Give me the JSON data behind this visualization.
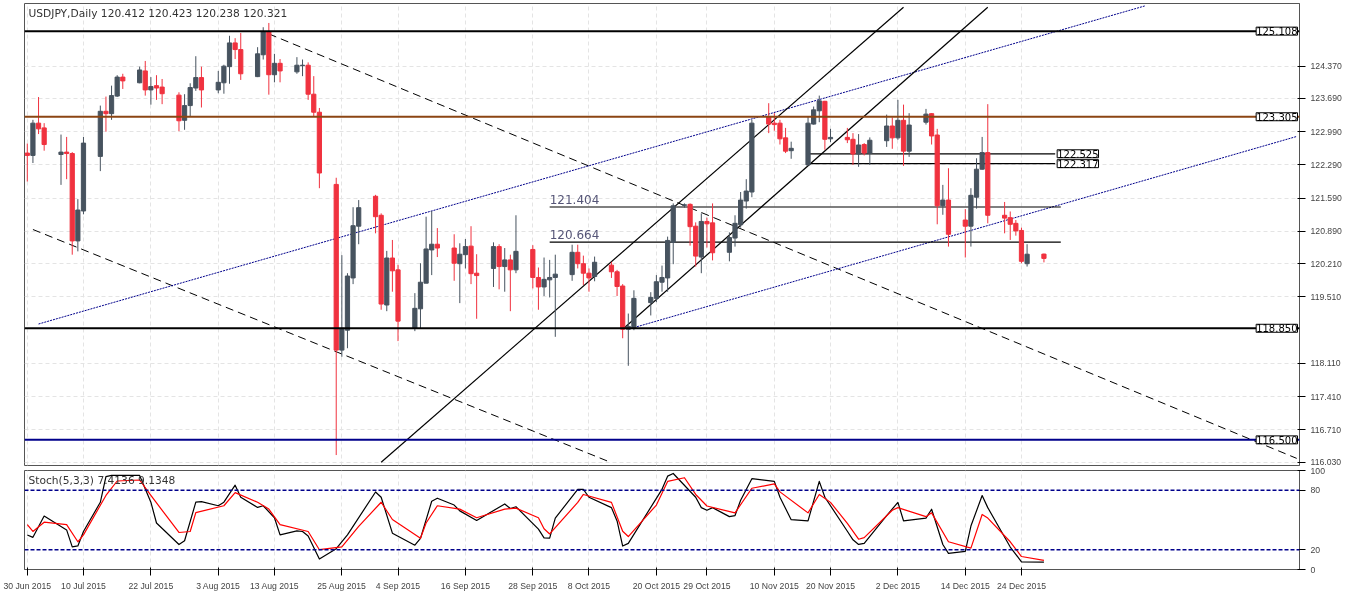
{
  "chart_data": [
    {
      "type": "candlestick",
      "title": "USDJPY,Daily 120.412 120.423 120.238 120.321",
      "x": [
        "2015-06-30",
        "2015-07-01",
        "2015-07-02",
        "2015-07-03",
        "2015-07-06",
        "2015-07-07",
        "2015-07-08",
        "2015-07-09",
        "2015-07-10",
        "2015-07-13",
        "2015-07-14",
        "2015-07-15",
        "2015-07-16",
        "2015-07-17",
        "2015-07-20",
        "2015-07-21",
        "2015-07-22",
        "2015-07-23",
        "2015-07-24",
        "2015-07-27",
        "2015-07-28",
        "2015-07-29",
        "2015-07-30",
        "2015-07-31",
        "2015-08-03",
        "2015-08-04",
        "2015-08-05",
        "2015-08-06",
        "2015-08-07",
        "2015-08-10",
        "2015-08-11",
        "2015-08-12",
        "2015-08-13",
        "2015-08-14",
        "2015-08-17",
        "2015-08-18",
        "2015-08-19",
        "2015-08-20",
        "2015-08-21",
        "2015-08-24",
        "2015-08-25",
        "2015-08-26",
        "2015-08-27",
        "2015-08-28",
        "2015-08-31",
        "2015-09-01",
        "2015-09-02",
        "2015-09-03",
        "2015-09-04",
        "2015-09-07",
        "2015-09-08",
        "2015-09-09",
        "2015-09-10",
        "2015-09-11",
        "2015-09-14",
        "2015-09-15",
        "2015-09-16",
        "2015-09-17",
        "2015-09-18",
        "2015-09-21",
        "2015-09-22",
        "2015-09-23",
        "2015-09-24",
        "2015-09-25",
        "2015-09-28",
        "2015-09-29",
        "2015-09-30",
        "2015-10-01",
        "2015-10-02",
        "2015-10-05",
        "2015-10-06",
        "2015-10-07",
        "2015-10-08",
        "2015-10-09",
        "2015-10-12",
        "2015-10-13",
        "2015-10-14",
        "2015-10-15",
        "2015-10-16",
        "2015-10-19",
        "2015-10-20",
        "2015-10-21",
        "2015-10-22",
        "2015-10-23",
        "2015-10-25",
        "2015-10-26",
        "2015-10-27",
        "2015-10-28",
        "2015-10-29",
        "2015-10-30",
        "2015-11-02",
        "2015-11-03",
        "2015-11-04",
        "2015-11-05",
        "2015-11-06",
        "2015-11-09",
        "2015-11-10",
        "2015-11-11",
        "2015-11-12",
        "2015-11-13",
        "2015-11-16",
        "2015-11-17",
        "2015-11-18",
        "2015-11-19",
        "2015-11-20",
        "2015-11-23",
        "2015-11-24",
        "2015-11-25",
        "2015-11-26",
        "2015-11-27",
        "2015-11-30",
        "2015-12-01",
        "2015-12-02",
        "2015-12-03",
        "2015-12-04",
        "2015-12-07",
        "2015-12-08",
        "2015-12-09",
        "2015-12-10",
        "2015-12-11",
        "2015-12-14",
        "2015-12-15",
        "2015-12-16",
        "2015-12-17",
        "2015-12-18",
        "2015-12-21",
        "2015-12-22",
        "2015-12-23",
        "2015-12-24",
        "2015-12-25",
        "2015-12-28"
      ],
      "ohlc": [
        [
          122.54,
          122.74,
          121.94,
          122.49
        ],
        [
          122.49,
          123.24,
          122.33,
          123.17
        ],
        [
          123.17,
          123.72,
          122.94,
          123.05
        ],
        [
          123.07,
          123.17,
          122.59,
          122.72
        ],
        [
          122.51,
          122.93,
          121.87,
          122.56
        ],
        [
          122.56,
          122.88,
          121.99,
          122.53
        ],
        [
          122.53,
          122.56,
          120.4,
          120.69
        ],
        [
          120.69,
          121.57,
          120.47,
          121.34
        ],
        [
          121.32,
          122.88,
          121.25,
          122.75
        ],
        [
          122.47,
          123.54,
          122.16,
          123.42
        ],
        [
          123.42,
          123.73,
          122.99,
          123.37
        ],
        [
          123.37,
          123.96,
          123.24,
          123.75
        ],
        [
          123.74,
          124.18,
          123.72,
          124.14
        ],
        [
          124.14,
          124.21,
          123.89,
          124.06
        ],
        [
          124.02,
          124.36,
          124.01,
          124.29
        ],
        [
          124.27,
          124.48,
          123.75,
          123.87
        ],
        [
          123.87,
          124.14,
          123.56,
          123.94
        ],
        [
          123.96,
          124.18,
          123.66,
          123.91
        ],
        [
          123.93,
          124.1,
          123.57,
          123.79
        ],
        [
          123.76,
          123.82,
          123.0,
          123.22
        ],
        [
          123.23,
          123.78,
          123.03,
          123.54
        ],
        [
          123.54,
          124.01,
          123.31,
          123.92
        ],
        [
          123.91,
          124.58,
          123.85,
          124.13
        ],
        [
          124.13,
          124.36,
          123.5,
          123.87
        ],
        [
          123.87,
          124.27,
          123.8,
          124.03
        ],
        [
          124.02,
          124.4,
          123.79,
          124.37
        ],
        [
          124.36,
          125.01,
          124.0,
          124.86
        ],
        [
          124.86,
          124.96,
          124.52,
          124.72
        ],
        [
          124.72,
          125.07,
          124.08,
          124.21
        ],
        [
          124.15,
          124.77,
          124.14,
          124.63
        ],
        [
          124.61,
          125.19,
          124.51,
          125.1
        ],
        [
          125.1,
          125.28,
          123.77,
          124.19
        ],
        [
          124.19,
          124.63,
          124.03,
          124.43
        ],
        [
          124.43,
          124.52,
          124.03,
          124.27
        ],
        [
          124.25,
          124.56,
          124.21,
          124.39
        ],
        [
          124.38,
          124.51,
          124.16,
          124.39
        ],
        [
          124.39,
          124.45,
          123.66,
          123.78
        ],
        [
          123.78,
          124.16,
          123.31,
          123.4
        ],
        [
          123.4,
          123.49,
          121.8,
          122.12
        ],
        [
          121.88,
          122.02,
          116.18,
          118.39
        ],
        [
          118.39,
          120.39,
          118.25,
          118.85
        ],
        [
          118.81,
          120.01,
          118.43,
          119.95
        ],
        [
          119.91,
          121.4,
          119.78,
          121.01
        ],
        [
          121.0,
          121.55,
          120.62,
          121.39
        ],
        [
          121.63,
          121.66,
          120.85,
          121.2
        ],
        [
          121.23,
          121.27,
          119.24,
          119.36
        ],
        [
          119.34,
          120.48,
          119.21,
          120.33
        ],
        [
          120.33,
          120.71,
          119.62,
          120.06
        ],
        [
          120.08,
          120.19,
          118.58,
          119.0
        ],
        [
          118.85,
          119.59,
          118.79,
          119.27
        ],
        [
          119.26,
          120.22,
          118.84,
          119.82
        ],
        [
          119.8,
          121.2,
          119.8,
          120.52
        ],
        [
          120.5,
          121.32,
          119.97,
          120.62
        ],
        [
          120.62,
          120.96,
          120.35,
          120.54
        ],
        [
          120.54,
          120.83,
          119.85,
          120.22
        ],
        [
          120.21,
          120.64,
          119.38,
          120.41
        ],
        [
          120.4,
          120.73,
          120.11,
          120.57
        ],
        [
          120.58,
          121.0,
          119.78,
          120.0
        ],
        [
          120.01,
          120.41,
          119.05,
          119.96
        ],
        [
          120.11,
          120.66,
          119.72,
          120.57
        ],
        [
          120.57,
          120.62,
          119.67,
          120.15
        ],
        [
          120.15,
          120.54,
          119.62,
          120.29
        ],
        [
          120.29,
          120.4,
          119.21,
          120.08
        ],
        [
          120.08,
          121.23,
          120.01,
          120.47
        ],
        [
          120.51,
          120.6,
          119.69,
          119.92
        ],
        [
          119.92,
          120.13,
          119.24,
          119.72
        ],
        [
          119.72,
          120.34,
          119.53,
          119.88
        ],
        [
          119.87,
          120.29,
          119.5,
          119.92
        ],
        [
          119.92,
          120.4,
          118.67,
          119.99
        ],
        [
          119.98,
          120.61,
          119.85,
          120.45
        ],
        [
          120.45,
          120.61,
          120.11,
          120.21
        ],
        [
          120.21,
          120.38,
          119.76,
          120.01
        ],
        [
          120.01,
          120.11,
          119.62,
          119.91
        ],
        [
          119.94,
          120.36,
          119.84,
          120.24
        ],
        [
          120.18,
          120.25,
          119.91,
          120.04
        ],
        [
          120.04,
          120.08,
          119.53,
          119.73
        ],
        [
          119.74,
          119.78,
          118.64,
          118.83
        ],
        [
          118.83,
          119.16,
          118.06,
          118.89
        ],
        [
          118.85,
          119.65,
          118.81,
          119.48
        ],
        [
          119.39,
          119.61,
          119.12,
          119.5
        ],
        [
          119.48,
          119.97,
          119.4,
          119.83
        ],
        [
          119.82,
          120.17,
          119.62,
          119.92
        ],
        [
          119.91,
          120.78,
          119.62,
          120.7
        ],
        [
          120.66,
          121.48,
          120.2,
          121.43
        ],
        [
          121.44,
          121.48,
          121.39,
          121.45
        ],
        [
          121.46,
          121.48,
          120.59,
          120.99
        ],
        [
          121.0,
          121.08,
          120.15,
          120.37
        ],
        [
          120.35,
          121.27,
          120.01,
          121.1
        ],
        [
          121.1,
          121.18,
          120.55,
          121.05
        ],
        [
          121.07,
          121.48,
          120.28,
          120.44
        ],
        [
          120.45,
          120.87,
          120.26,
          120.76
        ],
        [
          120.75,
          121.23,
          120.57,
          121.06
        ],
        [
          121.03,
          121.72,
          120.97,
          121.55
        ],
        [
          121.53,
          121.99,
          121.37,
          121.74
        ],
        [
          121.72,
          123.24,
          121.61,
          123.17
        ],
        [
          123.31,
          123.59,
          122.96,
          123.15
        ],
        [
          123.17,
          123.38,
          123.01,
          123.14
        ],
        [
          123.17,
          123.24,
          122.72,
          122.84
        ],
        [
          122.86,
          123.07,
          122.54,
          122.58
        ],
        [
          122.59,
          122.78,
          122.42,
          122.64
        ],
        [
          122.29,
          123.3,
          122.28,
          123.17
        ],
        [
          123.15,
          123.52,
          123.14,
          123.45
        ],
        [
          123.43,
          123.75,
          123.19,
          123.64
        ],
        [
          123.63,
          123.64,
          122.61,
          122.83
        ],
        [
          122.84,
          123.05,
          122.77,
          122.87
        ],
        [
          122.87,
          123.07,
          122.75,
          122.82
        ],
        [
          122.83,
          122.96,
          122.29,
          122.52
        ],
        [
          122.52,
          122.94,
          122.25,
          122.71
        ],
        [
          122.72,
          122.75,
          122.49,
          122.54
        ],
        [
          122.54,
          122.87,
          122.29,
          122.81
        ],
        [
          122.8,
          123.35,
          122.67,
          123.11
        ],
        [
          123.11,
          123.29,
          122.63,
          122.86
        ],
        [
          122.86,
          123.66,
          122.82,
          123.23
        ],
        [
          123.23,
          123.56,
          122.27,
          122.58
        ],
        [
          122.58,
          123.38,
          122.46,
          123.13
        ],
        [
          123.19,
          123.47,
          123.14,
          123.36
        ],
        [
          123.37,
          123.38,
          122.72,
          122.9
        ],
        [
          122.92,
          123.05,
          121.04,
          121.43
        ],
        [
          121.43,
          121.87,
          121.24,
          121.55
        ],
        [
          121.55,
          122.22,
          120.57,
          120.83
        ],
        [
          121.13,
          121.36,
          120.34,
          121.0
        ],
        [
          121.0,
          121.8,
          120.57,
          121.65
        ],
        [
          121.61,
          122.43,
          121.37,
          122.2
        ],
        [
          122.2,
          122.88,
          122.19,
          122.55
        ],
        [
          122.55,
          123.57,
          121.06,
          121.23
        ],
        [
          121.23,
          121.51,
          120.85,
          121.17
        ],
        [
          121.18,
          121.31,
          120.71,
          121.04
        ],
        [
          121.06,
          121.13,
          120.8,
          120.9
        ],
        [
          120.91,
          120.97,
          120.22,
          120.26
        ],
        [
          120.21,
          120.62,
          120.15,
          120.41
        ],
        [
          120.412,
          120.423,
          120.238,
          120.321
        ]
      ],
      "colors": [
        "#f0323f",
        "#47535f",
        "#f0323f",
        "#f0323f",
        "#47535f",
        "#f0323f",
        "#f0323f",
        "#47535f",
        "#47535f",
        "#47535f",
        "#f0323f",
        "#47535f",
        "#47535f",
        "#f0323f",
        "#47535f",
        "#f0323f",
        "#47535f",
        "#f0323f",
        "#f0323f",
        "#f0323f",
        "#47535f",
        "#47535f",
        "#47535f",
        "#f0323f",
        "#47535f",
        "#47535f",
        "#47535f",
        "#f0323f",
        "#f0323f",
        "#47535f",
        "#47535f",
        "#f0323f",
        "#47535f",
        "#f0323f",
        "#47535f",
        "#47535f",
        "#f0323f",
        "#f0323f",
        "#f0323f",
        "#f0323f",
        "#47535f",
        "#47535f",
        "#47535f",
        "#47535f",
        "#f0323f",
        "#f0323f",
        "#47535f",
        "#f0323f",
        "#f0323f",
        "#47535f",
        "#47535f",
        "#47535f",
        "#47535f",
        "#f0323f",
        "#f0323f",
        "#47535f",
        "#47535f",
        "#f0323f",
        "#f0323f",
        "#47535f",
        "#f0323f",
        "#47535f",
        "#f0323f",
        "#47535f",
        "#f0323f",
        "#f0323f",
        "#47535f",
        "#47535f",
        "#47535f",
        "#47535f",
        "#f0323f",
        "#f0323f",
        "#f0323f",
        "#47535f",
        "#f0323f",
        "#f0323f",
        "#f0323f",
        "#47535f",
        "#47535f",
        "#47535f",
        "#47535f",
        "#47535f",
        "#47535f",
        "#47535f",
        "#47535f",
        "#f0323f",
        "#f0323f",
        "#47535f",
        "#f0323f",
        "#f0323f",
        "#47535f",
        "#47535f",
        "#47535f",
        "#47535f",
        "#47535f",
        "#f0323f",
        "#f0323f",
        "#f0323f",
        "#f0323f",
        "#47535f",
        "#47535f",
        "#47535f",
        "#47535f",
        "#f0323f",
        "#47535f",
        "#f0323f",
        "#f0323f",
        "#47535f",
        "#f0323f",
        "#47535f",
        "#47535f",
        "#f0323f",
        "#47535f",
        "#f0323f",
        "#47535f",
        "#47535f",
        "#f0323f",
        "#f0323f",
        "#47535f",
        "#f0323f",
        "#f0323f",
        "#47535f",
        "#47535f",
        "#47535f",
        "#f0323f",
        "#f0323f",
        "#f0323f",
        "#f0323f",
        "#f0323f",
        "#47535f",
        "#f0323f"
      ],
      "series": [
        {
          "type": "line",
          "x": [
            "2015-08-12",
            "2016-02-11"
          ],
          "values": [
            125.05,
            116.11
          ],
          "color": "#000000",
          "line_style": "dashed"
        },
        {
          "type": "line",
          "x": [
            "2015-07-01",
            "2015-10-12"
          ],
          "values": [
            120.93,
            116.02
          ],
          "color": "#000000",
          "line_style": "dashed"
        },
        {
          "type": "line",
          "x": [
            "2015-07-02",
            "2016-01-15"
          ],
          "values": [
            118.94,
            125.64
          ],
          "color": "#00008b",
          "line_style": "dotted"
        },
        {
          "type": "line",
          "x": [
            "2015-10-15",
            "2016-02-11"
          ],
          "values": [
            118.83,
            122.89
          ],
          "color": "#00008b",
          "line_style": "dotted"
        },
        {
          "type": "line",
          "x": [
            "2015-09-01",
            "2015-12-03"
          ],
          "values": [
            116.03,
            125.61
          ],
          "color": "#000000",
          "line_style": "solid"
        },
        {
          "type": "line",
          "x": [
            "2015-10-14",
            "2015-12-18"
          ],
          "values": [
            118.83,
            125.61
          ],
          "color": "#000000",
          "line_style": "solid"
        },
        {
          "type": "line",
          "x": [
            "2015-10-01",
            "2015-12-31"
          ],
          "values": [
            121.404,
            121.404
          ],
          "color": "#000000",
          "line_style": "solid"
        },
        {
          "type": "line",
          "x": [
            "2015-10-01",
            "2015-12-31"
          ],
          "values": [
            120.664,
            120.664
          ],
          "color": "#000000",
          "line_style": "solid"
        },
        {
          "type": "line",
          "x": [
            "2015-11-16",
            "2015-12-30"
          ],
          "values": [
            122.525,
            122.525
          ],
          "color": "#000000",
          "line_style": "solid"
        },
        {
          "type": "line",
          "x": [
            "2015-11-16",
            "2015-12-30"
          ],
          "values": [
            122.317,
            122.317
          ],
          "color": "#000000",
          "line_style": "solid"
        }
      ],
      "ref_lines": [
        {
          "axis": "y",
          "value": 125.108,
          "label": "125.108",
          "color": "#000000"
        },
        {
          "axis": "y",
          "value": 123.305,
          "label": "123.305",
          "color": "#8b4513"
        },
        {
          "axis": "y",
          "value": 118.85,
          "label": "118.850",
          "color": "#000000"
        },
        {
          "axis": "y",
          "value": 116.5,
          "label": "116.500",
          "color": "#00008b"
        }
      ],
      "annotations": [
        {
          "text": "121.404",
          "x": "2015-10-01",
          "y": 121.404
        },
        {
          "text": "120.664",
          "x": "2015-10-01",
          "y": 120.664
        },
        {
          "text": "122.525",
          "x": "2015-12-30",
          "y": 122.525
        },
        {
          "text": "122.317",
          "x": "2015-12-30",
          "y": 122.317
        }
      ],
      "xlim": [
        "2015-06-29T12:00",
        "2016-02-11T12:00"
      ],
      "ylim": [
        115.96,
        125.69
      ],
      "xticks": [
        {
          "value": "2015-06-30",
          "label": null
        },
        {
          "value": "2015-07-10",
          "label": null
        },
        {
          "value": "2015-07-22",
          "label": null
        },
        {
          "value": "2015-08-03",
          "label": null
        },
        {
          "value": "2015-08-13",
          "label": null
        },
        {
          "value": "2015-08-25",
          "label": null
        },
        {
          "value": "2015-09-04",
          "label": null
        },
        {
          "value": "2015-09-16",
          "label": null
        },
        {
          "value": "2015-09-28",
          "label": null
        },
        {
          "value": "2015-10-08",
          "label": null
        },
        {
          "value": "2015-10-20",
          "label": null
        },
        {
          "value": "2015-10-29",
          "label": null
        },
        {
          "value": "2015-11-10",
          "label": null
        },
        {
          "value": "2015-11-20",
          "label": null
        },
        {
          "value": "2015-12-02",
          "label": null
        },
        {
          "value": "2015-12-14",
          "label": null
        },
        {
          "value": "2015-12-24",
          "label": null
        }
      ],
      "yticks": [
        {
          "value": 124.37,
          "label": "124.370"
        },
        {
          "value": 123.69,
          "label": "123.690"
        },
        {
          "value": 122.99,
          "label": "122.990"
        },
        {
          "value": 122.29,
          "label": "122.290"
        },
        {
          "value": 121.59,
          "label": "121.590"
        },
        {
          "value": 120.89,
          "label": "120.890"
        },
        {
          "value": 120.21,
          "label": "120.210"
        },
        {
          "value": 119.51,
          "label": "119.510"
        },
        {
          "value": 118.11,
          "label": "118.110"
        },
        {
          "value": 117.41,
          "label": "117.410"
        },
        {
          "value": 116.71,
          "label": "116.710"
        },
        {
          "value": 116.03,
          "label": "116.030"
        }
      ],
      "grid": true,
      "tick_labels": "y"
    },
    {
      "type": "line",
      "title": "Stoch(5,3,3) 7.4136 9.1348",
      "series": [
        {
          "color": "#000000",
          "x": [
            "2015-06-30",
            "2015-07-01",
            "2015-07-03",
            "2015-07-07",
            "2015-07-08",
            "2015-07-09",
            "2015-07-10",
            "2015-07-13",
            "2015-07-14",
            "2015-07-15",
            "2015-07-20",
            "2015-07-22",
            "2015-07-23",
            "2015-07-27",
            "2015-07-28",
            "2015-07-30",
            "2015-07-31",
            "2015-08-03",
            "2015-08-04",
            "2015-08-06",
            "2015-08-07",
            "2015-08-10",
            "2015-08-11",
            "2015-08-13",
            "2015-08-14",
            "2015-08-17",
            "2015-08-18",
            "2015-08-19",
            "2015-08-21",
            "2015-08-24",
            "2015-08-26",
            "2015-08-31",
            "2015-09-01",
            "2015-09-03",
            "2015-09-07",
            "2015-09-08",
            "2015-09-10",
            "2015-09-11",
            "2015-09-14",
            "2015-09-15",
            "2015-09-18",
            "2015-09-23",
            "2015-09-24",
            "2015-09-25",
            "2015-09-29",
            "2015-09-30",
            "2015-10-01",
            "2015-10-02",
            "2015-10-06",
            "2015-10-07",
            "2015-10-08",
            "2015-10-12",
            "2015-10-13",
            "2015-10-14",
            "2015-10-15",
            "2015-10-21",
            "2015-10-22",
            "2015-10-23",
            "2015-10-27",
            "2015-10-28",
            "2015-10-29",
            "2015-10-30",
            "2015-11-02",
            "2015-11-03",
            "2015-11-04",
            "2015-11-06",
            "2015-11-10",
            "2015-11-11",
            "2015-11-13",
            "2015-11-16",
            "2015-11-18",
            "2015-11-19",
            "2015-11-23",
            "2015-11-24",
            "2015-11-25",
            "2015-11-26",
            "2015-11-30",
            "2015-12-02",
            "2015-12-03",
            "2015-12-07",
            "2015-12-08",
            "2015-12-10",
            "2015-12-11",
            "2015-12-14",
            "2015-12-15",
            "2015-12-17",
            "2015-12-18",
            "2015-12-22",
            "2015-12-24",
            "2015-12-28"
          ],
          "values": [
            34.9,
            32.5,
            54,
            40,
            22.8,
            23.8,
            38.4,
            67.9,
            93.9,
            95,
            95,
            68,
            47,
            25.2,
            29,
            68,
            68.6,
            64.4,
            68,
            85.2,
            73,
            62.7,
            64.4,
            52.3,
            35,
            39,
            38.4,
            33.9,
            10.6,
            21,
            35,
            78.3,
            73,
            36.7,
            24.5,
            31.5,
            68.9,
            72,
            65.1,
            59.2,
            49.5,
            66.2,
            61.6,
            63.4,
            40.8,
            32,
            31.7,
            51.9,
            81,
            81,
            73,
            62.5,
            49,
            23.7,
            26.4,
            81,
            94.3,
            97,
            73,
            62.5,
            59.8,
            62.5,
            53.4,
            54.5,
            70,
            91.7,
            89,
            73,
            50.3,
            49.2,
            89,
            73,
            38.6,
            30,
            25.3,
            26.4,
            54.5,
            67.8,
            49.2,
            51.9,
            60.9,
            25.3,
            16.3,
            18.4,
            43.9,
            74.7,
            62.5,
            22.7,
            7.8,
            7.41
          ]
        },
        {
          "color": "#ff0000",
          "x": [
            "2015-06-30",
            "2015-07-01",
            "2015-07-03",
            "2015-07-07",
            "2015-07-09",
            "2015-07-10",
            "2015-07-14",
            "2015-07-16",
            "2015-07-20",
            "2015-07-22",
            "2015-07-27",
            "2015-07-29",
            "2015-07-30",
            "2015-08-04",
            "2015-08-06",
            "2015-08-10",
            "2015-08-12",
            "2015-08-14",
            "2015-08-19",
            "2015-08-21",
            "2015-08-25",
            "2015-08-28",
            "2015-09-01",
            "2015-09-03",
            "2015-09-08",
            "2015-09-09",
            "2015-09-11",
            "2015-09-15",
            "2015-09-18",
            "2015-09-23",
            "2015-09-25",
            "2015-09-29",
            "2015-09-30",
            "2015-10-01",
            "2015-10-06",
            "2015-10-07",
            "2015-10-12",
            "2015-10-14",
            "2015-10-15",
            "2015-10-20",
            "2015-10-22",
            "2015-10-25",
            "2015-10-27",
            "2015-10-29",
            "2015-11-03",
            "2015-11-06",
            "2015-11-10",
            "2015-11-11",
            "2015-11-16",
            "2015-11-18",
            "2015-11-20",
            "2015-11-23",
            "2015-11-25",
            "2015-11-26",
            "2015-12-01",
            "2015-12-02",
            "2015-12-07",
            "2015-12-08",
            "2015-12-11",
            "2015-12-15",
            "2015-12-17",
            "2015-12-18",
            "2015-12-22",
            "2015-12-24",
            "2015-12-28"
          ],
          "values": [
            45.3,
            38.4,
            47.8,
            45.3,
            28,
            35,
            74.8,
            89.4,
            90.4,
            74.8,
            37.4,
            38.4,
            57.5,
            64.4,
            77.6,
            67.9,
            61,
            45.3,
            38.4,
            20,
            22.8,
            43.6,
            67.9,
            50.5,
            31.5,
            47,
            64.4,
            61,
            52.3,
            61,
            62,
            52.3,
            41.2,
            35.9,
            67.8,
            75.8,
            67.8,
            38.6,
            33.3,
            65.1,
            89,
            92.7,
            75.8,
            64.1,
            57.2,
            82.1,
            86.4,
            78.4,
            57.2,
            75.8,
            67.8,
            46.6,
            30.6,
            32.2,
            59.8,
            62.5,
            53.4,
            57.2,
            28,
            21.6,
            55.6,
            51.9,
            28,
            13.1,
            9.13
          ]
        }
      ],
      "ref_lines": [
        {
          "axis": "y",
          "value": 80,
          "color": "#00008b",
          "line_style": "dotted"
        },
        {
          "axis": "y",
          "value": 20,
          "color": "#00008b",
          "line_style": "dotted"
        }
      ],
      "xlim": [
        "2015-06-29T12:00",
        "2016-02-11T12:00"
      ],
      "ylim": [
        0,
        100
      ],
      "xticks": [
        {
          "value": "2015-06-30",
          "label": "30 Jun 2015"
        },
        {
          "value": "2015-07-10",
          "label": "10 Jul 2015"
        },
        {
          "value": "2015-07-22",
          "label": "22 Jul 2015"
        },
        {
          "value": "2015-08-03",
          "label": "3 Aug 2015"
        },
        {
          "value": "2015-08-13",
          "label": "13 Aug 2015"
        },
        {
          "value": "2015-08-25",
          "label": "25 Aug 2015"
        },
        {
          "value": "2015-09-04",
          "label": "4 Sep 2015"
        },
        {
          "value": "2015-09-16",
          "label": "16 Sep 2015"
        },
        {
          "value": "2015-09-28",
          "label": "28 Sep 2015"
        },
        {
          "value": "2015-10-08",
          "label": "8 Oct 2015"
        },
        {
          "value": "2015-10-20",
          "label": "20 Oct 2015"
        },
        {
          "value": "2015-10-29",
          "label": "29 Oct 2015"
        },
        {
          "value": "2015-11-10",
          "label": "10 Nov 2015"
        },
        {
          "value": "2015-11-20",
          "label": "20 Nov 2015"
        },
        {
          "value": "2015-12-02",
          "label": "2 Dec 2015"
        },
        {
          "value": "2015-12-14",
          "label": "14 Dec 2015"
        },
        {
          "value": "2015-12-24",
          "label": "24 Dec 2015"
        }
      ],
      "yticks": [
        0,
        20,
        80,
        100
      ],
      "grid": "x"
    }
  ]
}
